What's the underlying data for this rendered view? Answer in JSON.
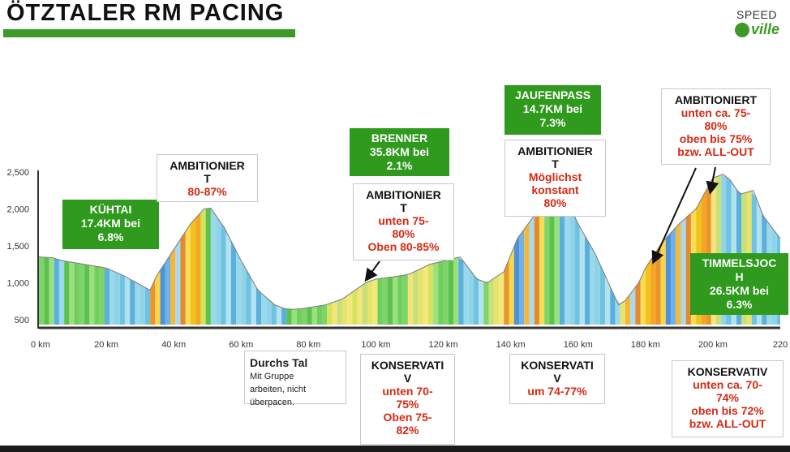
{
  "header": {
    "title": "ÖTZTALER RM PACING",
    "logo_top": "SPEED",
    "logo_bottom": "ville",
    "accent": "#3d9a26"
  },
  "chart_data": {
    "type": "area",
    "title": "ÖTZTALER RM PACING",
    "xlabel": "",
    "ylabel": "",
    "x_unit": "km",
    "xlim": [
      0,
      220
    ],
    "ylim": [
      500,
      2500
    ],
    "x_ticks": [
      "0 km",
      "20 km",
      "40 km",
      "60 km",
      "80 km",
      "100 km",
      "120 km",
      "140 km",
      "160 km",
      "180 km",
      "200 km",
      "220"
    ],
    "y_ticks": [
      "500",
      "1,000",
      "1,500",
      "2,000",
      "2,500"
    ],
    "profile": {
      "x": [
        0,
        4,
        7,
        20,
        25,
        31,
        33,
        35,
        40,
        45,
        49,
        51,
        55,
        60,
        65,
        70,
        73,
        75,
        78,
        85,
        90,
        97,
        100,
        105,
        108,
        110,
        116,
        125,
        130,
        133,
        138,
        142,
        150,
        155,
        158,
        160,
        165,
        170,
        172,
        174,
        178,
        180,
        185,
        190,
        195,
        200,
        203,
        205,
        208,
        212,
        215,
        220
      ],
      "y": [
        1350,
        1340,
        1300,
        1200,
        1100,
        950,
        900,
        1100,
        1450,
        1800,
        2000,
        2010,
        1750,
        1300,
        900,
        700,
        650,
        640,
        650,
        700,
        780,
        1000,
        1050,
        1080,
        1100,
        1120,
        1250,
        1350,
        1050,
        1000,
        1150,
        1600,
        2100,
        2120,
        2000,
        1800,
        1400,
        900,
        700,
        760,
        1000,
        1200,
        1550,
        1800,
        2000,
        2420,
        2470,
        2400,
        2200,
        2250,
        1900,
        1600
      ]
    },
    "grid": false,
    "legend": "none"
  },
  "annotations": {
    "kuhtai": {
      "line1": "KÜHTAI",
      "line2": "17.4KM bei",
      "line3": "6.8%"
    },
    "amb1": {
      "line1": "AMBITIONIER",
      "line2": "T",
      "red1": "80-87%"
    },
    "brenner": {
      "line1": "BRENNER",
      "line2": "35.8KM bei",
      "line3": "2.1%"
    },
    "amb2": {
      "line1": "AMBITIONIER",
      "line2": "T",
      "red1": "unten 75-",
      "red2": "80%",
      "red3": "Oben 80-85%"
    },
    "jaufen": {
      "line1": "JAUFENPASS",
      "line2": "14.7KM bei",
      "line3": "7.3%"
    },
    "amb3": {
      "line1": "AMBITIONIER",
      "line2": "T",
      "red1": "Möglichst",
      "red2": "konstant",
      "red3": "80%"
    },
    "amb4": {
      "line1": "AMBITIONIERT",
      "red1": "unten ca. 75-",
      "red2": "80%",
      "red3": "oben bis 75%",
      "red4": "bzw. ALL-OUT"
    },
    "timmels": {
      "line1": "TIMMELSJOC",
      "line2": "H",
      "line3": "26.5KM bei",
      "line4": "6.3%"
    },
    "durchs": {
      "title": "Durchs Tal",
      "sub1": "Mit Gruppe",
      "sub2": "arbeiten, nicht",
      "sub3": "überpacen."
    },
    "kons1": {
      "line1": "KONSERVATI",
      "line2": "V",
      "red1": "unten 70-",
      "red2": "75%",
      "red3": "Oben 75-",
      "red4": "82%"
    },
    "kons2": {
      "line1": "KONSERVATI",
      "line2": "V",
      "red1": "um 74-77%"
    },
    "kons3": {
      "line1": "KONSERVATIV",
      "red1": "unten ca. 70-",
      "red2": "74%",
      "red3": "oben bis 72%",
      "red4": "bzw. ALL-OUT"
    }
  }
}
